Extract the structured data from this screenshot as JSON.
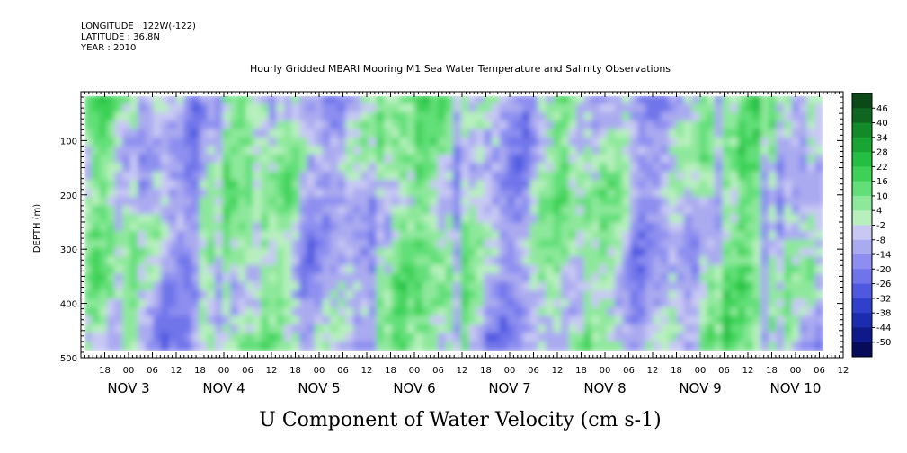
{
  "header": {
    "longitude": "LONGITUDE : 122W(-122)",
    "latitude": "LATITUDE : 36.8N",
    "year": "YEAR : 2010",
    "title": "Hourly Gridded MBARI Mooring M1 Sea Water Temperature and Salinity Observations"
  },
  "chart_data": {
    "type": "heatmap",
    "title": "Hourly Gridded MBARI Mooring M1 Sea Water Temperature and Salinity Observations",
    "xlabel": "U Component of Water Velocity (cm s-1)",
    "ylabel": "DEPTH (m)",
    "y_ticks": [
      100,
      200,
      300,
      400,
      500
    ],
    "ylim": [
      500,
      10
    ],
    "y_reversed": true,
    "hour_ticks": [
      "18",
      "00",
      "06",
      "12",
      "18",
      "00",
      "06",
      "12",
      "18",
      "00",
      "06",
      "12",
      "18",
      "00",
      "06",
      "12",
      "18",
      "00",
      "06",
      "12",
      "18",
      "00",
      "06",
      "12",
      "18",
      "00",
      "06",
      "12",
      "18",
      "00",
      "06",
      "12"
    ],
    "day_labels": [
      "NOV 3",
      "NOV 4",
      "NOV 5",
      "NOV 6",
      "NOV 7",
      "NOV 8",
      "NOV 9",
      "NOV 10"
    ],
    "colorbar_labels": [
      "46",
      "40",
      "34",
      "28",
      "22",
      "16",
      "10",
      "4",
      "-2",
      "-8",
      "-14",
      "-20",
      "-26",
      "-32",
      "-38",
      "-44",
      "-50"
    ],
    "colorbar_colors": [
      "#0b4a18",
      "#0f6620",
      "#138a2a",
      "#18a534",
      "#23bf42",
      "#3dd257",
      "#62df78",
      "#8ee89b",
      "#b7f0bd",
      "#c8c8f4",
      "#aaaaf0",
      "#8d8ef0",
      "#6f74ea",
      "#4f58e0",
      "#3040cc",
      "#1c2cb0",
      "#0e1a8a",
      "#060c5a"
    ],
    "grid": false,
    "colorbar_position": "right",
    "data_extent_hours": {
      "start": 1,
      "end": 187
    },
    "data_extent_depth": {
      "top": 18,
      "bottom": 487
    }
  }
}
